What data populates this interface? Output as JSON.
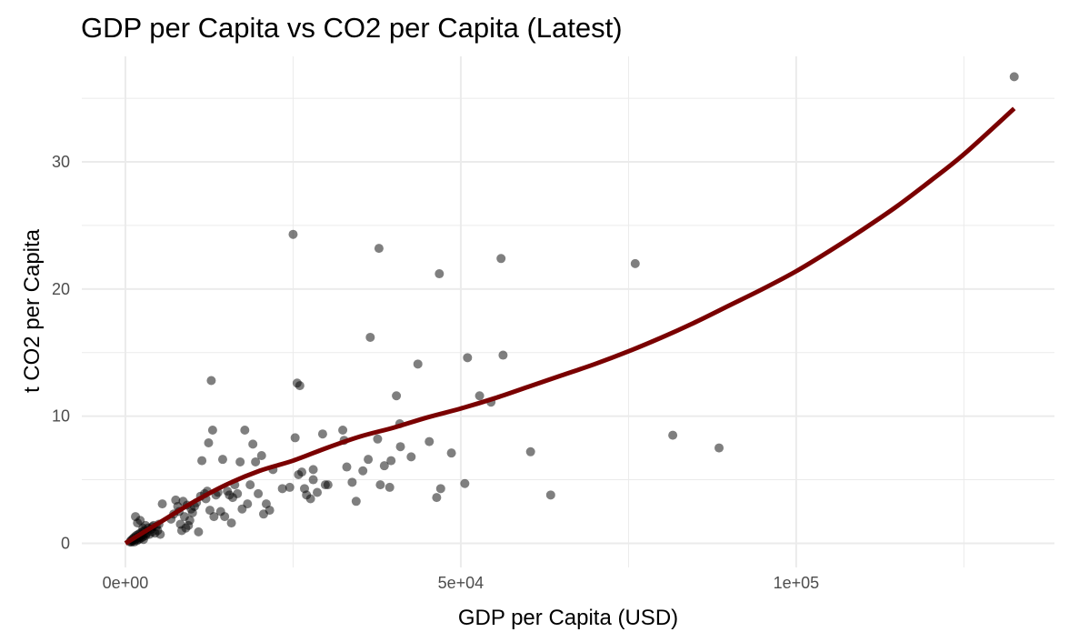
{
  "chart_data": {
    "type": "scatter",
    "title": "GDP per Capita vs CO2 per Capita (Latest)",
    "xlabel": "GDP per Capita (USD)",
    "ylabel": "t CO2 per Capita",
    "xlim": [
      -6500,
      138500
    ],
    "ylim": [
      -1.9,
      38.3
    ],
    "x_major_ticks": [
      0,
      50000,
      100000
    ],
    "x_tick_labels": [
      "0e+00",
      "5e+04",
      "1e+05"
    ],
    "x_minor_ticks": [
      25000,
      75000,
      125000
    ],
    "y_major_ticks": [
      0,
      10,
      20,
      30
    ],
    "y_tick_labels": [
      "0",
      "10",
      "20",
      "30"
    ],
    "y_minor_ticks": [
      5,
      15,
      25,
      35
    ],
    "grid": true,
    "colors": {
      "points": "#000000",
      "trend": "#7a0000",
      "grid": "#ebebeb"
    },
    "series": [
      {
        "type": "scatter",
        "points": [
          [
            700,
            0.1
          ],
          [
            800,
            0.2
          ],
          [
            900,
            0.1
          ],
          [
            1000,
            0.3
          ],
          [
            1100,
            0.2
          ],
          [
            1200,
            0.4
          ],
          [
            1300,
            0.1
          ],
          [
            1400,
            0.5
          ],
          [
            1500,
            0.3
          ],
          [
            1600,
            0.6
          ],
          [
            1700,
            0.2
          ],
          [
            1800,
            0.4
          ],
          [
            1900,
            0.7
          ],
          [
            2000,
            0.3
          ],
          [
            2100,
            0.5
          ],
          [
            2200,
            0.8
          ],
          [
            2300,
            0.4
          ],
          [
            2400,
            0.6
          ],
          [
            2500,
            0.9
          ],
          [
            2600,
            0.5
          ],
          [
            2700,
            0.3
          ],
          [
            2800,
            0.7
          ],
          [
            2900,
            1.0
          ],
          [
            3000,
            0.6
          ],
          [
            3200,
            0.8
          ],
          [
            3400,
            1.2
          ],
          [
            3600,
            0.7
          ],
          [
            3800,
            1.1
          ],
          [
            4000,
            0.9
          ],
          [
            4200,
            1.4
          ],
          [
            4400,
            0.8
          ],
          [
            4600,
            1.3
          ],
          [
            4800,
            1.0
          ],
          [
            5000,
            1.5
          ],
          [
            5200,
            0.7
          ],
          [
            1500,
            2.1
          ],
          [
            1800,
            1.6
          ],
          [
            2200,
            1.8
          ],
          [
            2600,
            1.2
          ],
          [
            3000,
            1.4
          ],
          [
            4000,
            1.3
          ],
          [
            5500,
            3.1
          ],
          [
            6800,
            1.9
          ],
          [
            7200,
            2.3
          ],
          [
            7500,
            3.4
          ],
          [
            7800,
            2.9
          ],
          [
            8000,
            2.5
          ],
          [
            8200,
            1.5
          ],
          [
            8400,
            1.0
          ],
          [
            8600,
            3.3
          ],
          [
            8800,
            2.1
          ],
          [
            9000,
            1.2
          ],
          [
            9200,
            3.0
          ],
          [
            9400,
            1.4
          ],
          [
            9600,
            1.8
          ],
          [
            9800,
            2.7
          ],
          [
            10000,
            2.4
          ],
          [
            10300,
            2.9
          ],
          [
            10600,
            3.2
          ],
          [
            10900,
            0.9
          ],
          [
            11200,
            3.7
          ],
          [
            11400,
            6.5
          ],
          [
            11800,
            3.9
          ],
          [
            12000,
            3.5
          ],
          [
            12200,
            4.1
          ],
          [
            12400,
            7.9
          ],
          [
            12600,
            2.6
          ],
          [
            12800,
            12.8
          ],
          [
            13000,
            8.9
          ],
          [
            13200,
            2.1
          ],
          [
            13500,
            3.8
          ],
          [
            13800,
            4.0
          ],
          [
            14200,
            2.5
          ],
          [
            14500,
            6.6
          ],
          [
            14800,
            2.1
          ],
          [
            15200,
            4.1
          ],
          [
            15500,
            3.8
          ],
          [
            15800,
            1.6
          ],
          [
            16000,
            3.6
          ],
          [
            16300,
            4.6
          ],
          [
            16700,
            3.9
          ],
          [
            17100,
            6.4
          ],
          [
            17400,
            2.7
          ],
          [
            17800,
            8.9
          ],
          [
            18200,
            3.1
          ],
          [
            18600,
            4.6
          ],
          [
            19000,
            7.8
          ],
          [
            19400,
            6.4
          ],
          [
            19800,
            3.9
          ],
          [
            20300,
            6.9
          ],
          [
            20600,
            2.3
          ],
          [
            21000,
            3.1
          ],
          [
            21500,
            2.6
          ],
          [
            22000,
            5.8
          ],
          [
            23400,
            4.3
          ],
          [
            24500,
            4.4
          ],
          [
            25000,
            24.3
          ],
          [
            25300,
            8.3
          ],
          [
            25600,
            12.6
          ],
          [
            25800,
            5.4
          ],
          [
            26000,
            12.4
          ],
          [
            26300,
            5.6
          ],
          [
            26700,
            4.3
          ],
          [
            27000,
            3.8
          ],
          [
            27600,
            3.5
          ],
          [
            28000,
            5.0
          ],
          [
            28000,
            5.8
          ],
          [
            28600,
            4.0
          ],
          [
            29400,
            8.6
          ],
          [
            29800,
            4.6
          ],
          [
            30200,
            4.6
          ],
          [
            32400,
            8.9
          ],
          [
            32600,
            8.1
          ],
          [
            33000,
            6.0
          ],
          [
            33800,
            4.8
          ],
          [
            34400,
            3.3
          ],
          [
            35400,
            5.7
          ],
          [
            36200,
            6.6
          ],
          [
            36500,
            16.2
          ],
          [
            37600,
            8.2
          ],
          [
            37800,
            23.2
          ],
          [
            38000,
            4.6
          ],
          [
            38600,
            6.1
          ],
          [
            39400,
            4.4
          ],
          [
            39600,
            6.5
          ],
          [
            40400,
            11.6
          ],
          [
            40900,
            9.4
          ],
          [
            41000,
            7.6
          ],
          [
            42600,
            6.8
          ],
          [
            43600,
            14.1
          ],
          [
            45300,
            8.0
          ],
          [
            46400,
            3.6
          ],
          [
            46800,
            21.2
          ],
          [
            47000,
            4.3
          ],
          [
            48600,
            7.1
          ],
          [
            50600,
            4.7
          ],
          [
            51000,
            14.6
          ],
          [
            52800,
            11.6
          ],
          [
            54500,
            11.1
          ],
          [
            56000,
            22.4
          ],
          [
            56300,
            14.8
          ],
          [
            60400,
            7.2
          ],
          [
            63400,
            3.8
          ],
          [
            76000,
            22.0
          ],
          [
            81600,
            8.5
          ],
          [
            88500,
            7.5
          ],
          [
            132500,
            36.7
          ]
        ]
      },
      {
        "type": "line",
        "name": "",
        "points": [
          [
            0,
            0.0
          ],
          [
            5000,
            1.6
          ],
          [
            10000,
            3.2
          ],
          [
            15000,
            4.6
          ],
          [
            20000,
            5.7
          ],
          [
            25000,
            6.5
          ],
          [
            30000,
            7.5
          ],
          [
            35000,
            8.4
          ],
          [
            40000,
            9.1
          ],
          [
            45000,
            9.9
          ],
          [
            50000,
            10.6
          ],
          [
            55000,
            11.4
          ],
          [
            60000,
            12.3
          ],
          [
            65000,
            13.2
          ],
          [
            70000,
            14.1
          ],
          [
            75000,
            15.1
          ],
          [
            80000,
            16.2
          ],
          [
            85000,
            17.4
          ],
          [
            90000,
            18.7
          ],
          [
            95000,
            20.0
          ],
          [
            100000,
            21.4
          ],
          [
            105000,
            23.0
          ],
          [
            110000,
            24.7
          ],
          [
            115000,
            26.5
          ],
          [
            120000,
            28.5
          ],
          [
            125000,
            30.6
          ],
          [
            132500,
            34.2
          ]
        ]
      }
    ]
  }
}
